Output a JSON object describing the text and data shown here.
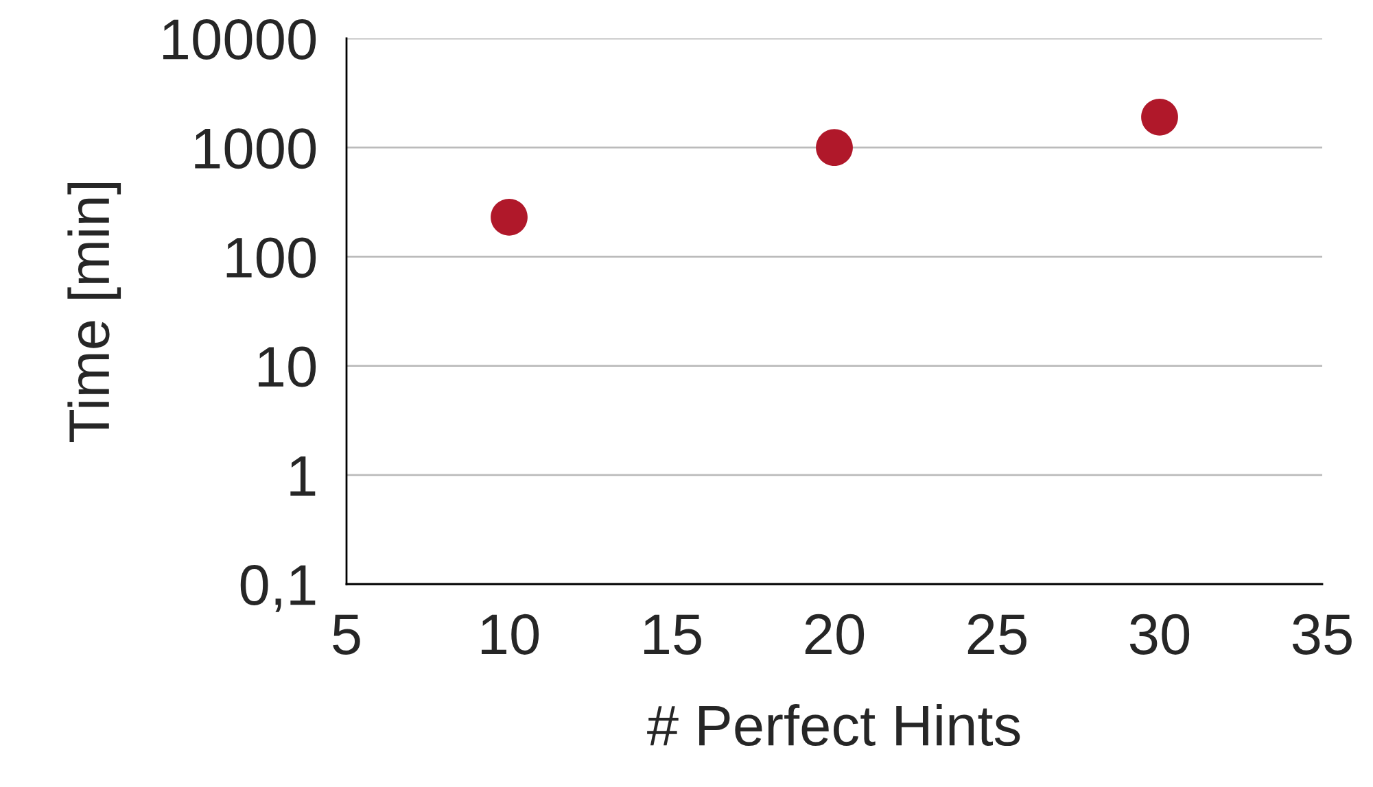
{
  "chart_data": {
    "type": "scatter",
    "xlabel": "# Perfect Hints",
    "ylabel": "Time [min]",
    "x": [
      10,
      20,
      30
    ],
    "values": [
      230,
      1000,
      1900
    ],
    "color": "#b0182a",
    "marker": "circle",
    "log": "y",
    "grid": "y",
    "legend": false,
    "xlim": [
      5,
      35
    ],
    "xticks": [
      5,
      10,
      15,
      20,
      25,
      30,
      35
    ],
    "ylim": [
      0.1,
      10000
    ],
    "yticks": [
      {
        "value": 0.1,
        "label": "0,1"
      },
      1,
      10,
      100,
      1000,
      10000
    ]
  }
}
